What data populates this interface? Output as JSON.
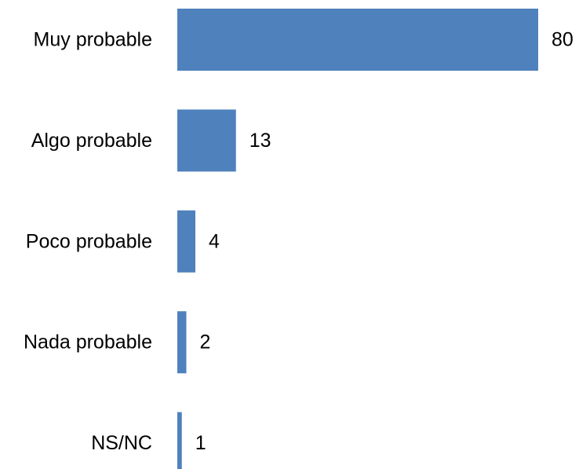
{
  "chart_data": {
    "type": "bar",
    "orientation": "horizontal",
    "categories": [
      "Muy probable",
      "Algo probable",
      "Poco probable",
      "Nada probable",
      "NS/NC"
    ],
    "values": [
      80,
      13,
      4,
      2,
      1
    ],
    "data_labels": [
      "80",
      "13",
      "4",
      "2",
      "1"
    ],
    "title": "",
    "xlabel": "",
    "ylabel": "",
    "xlim": [
      0,
      80
    ],
    "grid": false,
    "legend": "none",
    "bar_color": "#4f81bd"
  }
}
